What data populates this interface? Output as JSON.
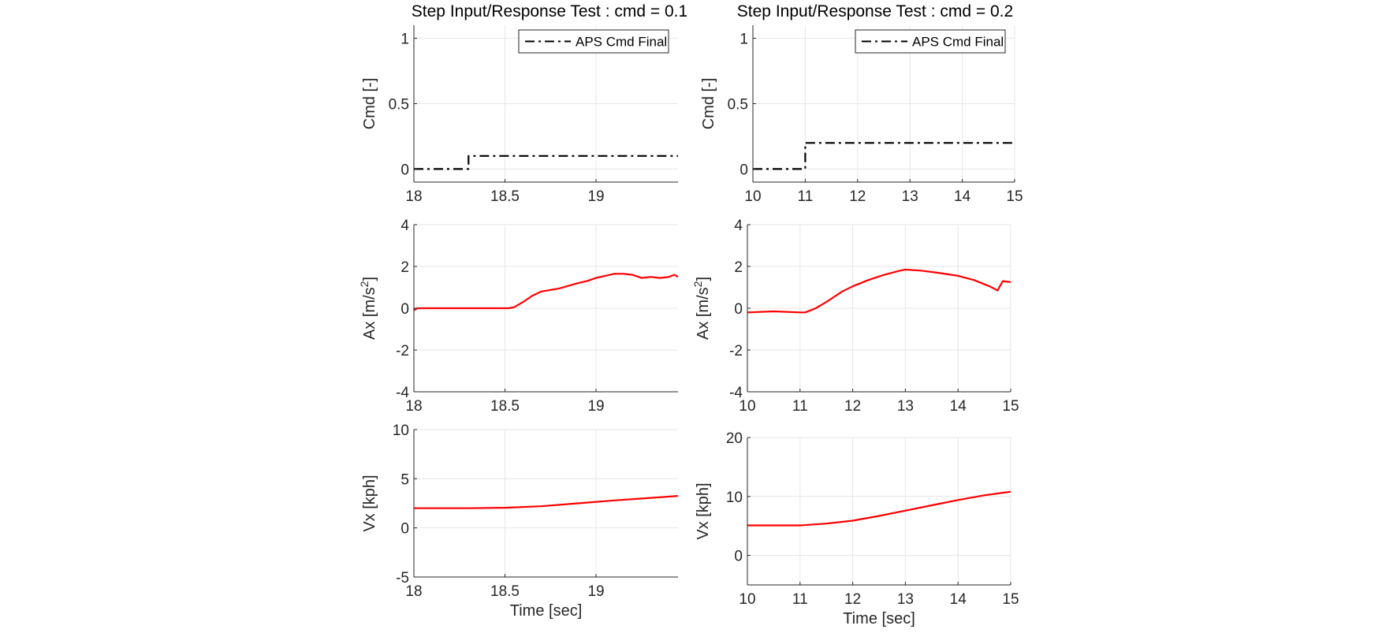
{
  "figure": {
    "columns": [
      {
        "title": "Step Input/Response Test : cmd = 0.1"
      },
      {
        "title": "Step Input/Response Test : cmd = 0.2"
      }
    ]
  },
  "colors": {
    "response": "#ff0000",
    "command": "#000000",
    "grid": "#e6e6e6",
    "axis": "#262626"
  },
  "chart_data": [
    {
      "type": "line",
      "title": "Step Input/Response Test : cmd = 0.1",
      "xlabel": "",
      "ylabel": "Cmd [-]",
      "xlim": [
        18,
        19.45
      ],
      "ylim": [
        -0.1,
        1.1
      ],
      "xticks": [
        18,
        18.5,
        19
      ],
      "yticks": [
        0,
        0.5,
        1
      ],
      "xtick_labels": [
        "18",
        "18.5",
        "19"
      ],
      "ytick_labels": [
        "0",
        "0.5",
        "1"
      ],
      "grid": true,
      "legend": "top-right",
      "series": [
        {
          "name": "APS Cmd Final",
          "style": "dashdot",
          "color": "#000000",
          "x": [
            18,
            18.3,
            18.3,
            19.45
          ],
          "y": [
            0,
            0,
            0.1,
            0.1
          ]
        }
      ]
    },
    {
      "type": "line",
      "title": "Step Input/Response Test : cmd = 0.2",
      "xlabel": "",
      "ylabel": "Cmd [-]",
      "xlim": [
        10,
        15
      ],
      "ylim": [
        -0.1,
        1.1
      ],
      "xticks": [
        10,
        11,
        12,
        13,
        14,
        15
      ],
      "yticks": [
        0,
        0.5,
        1
      ],
      "xtick_labels": [
        "10",
        "11",
        "12",
        "13",
        "14",
        "15"
      ],
      "ytick_labels": [
        "0",
        "0.5",
        "1"
      ],
      "grid": true,
      "legend": "top-right",
      "series": [
        {
          "name": "APS Cmd Final",
          "style": "dashdot",
          "color": "#000000",
          "x": [
            10,
            11,
            11,
            15
          ],
          "y": [
            0,
            0,
            0.2,
            0.2
          ]
        }
      ]
    },
    {
      "type": "line",
      "xlabel": "",
      "ylabel": "Ax [m/s^2]",
      "xlim": [
        18,
        19.45
      ],
      "ylim": [
        -4,
        4
      ],
      "xticks": [
        18,
        18.5,
        19
      ],
      "yticks": [
        -4,
        -2,
        0,
        2,
        4
      ],
      "xtick_labels": [
        "18",
        "18.5",
        "19"
      ],
      "ytick_labels": [
        "-4",
        "-2",
        "0",
        "2",
        "4"
      ],
      "grid": true,
      "series": [
        {
          "style": "solid",
          "color": "#ff0000",
          "x": [
            18,
            18.02,
            18.52,
            18.55,
            18.6,
            18.65,
            18.7,
            18.8,
            18.9,
            18.95,
            19.0,
            19.05,
            19.1,
            19.15,
            19.2,
            19.25,
            19.3,
            19.35,
            19.4,
            19.43,
            19.45
          ],
          "y": [
            -0.1,
            0,
            0,
            0.05,
            0.3,
            0.6,
            0.8,
            0.95,
            1.2,
            1.3,
            1.45,
            1.55,
            1.65,
            1.65,
            1.6,
            1.45,
            1.5,
            1.45,
            1.5,
            1.6,
            1.5
          ]
        }
      ]
    },
    {
      "type": "line",
      "xlabel": "",
      "ylabel": "Ax [m/s^2]",
      "xlim": [
        10,
        15
      ],
      "ylim": [
        -4,
        4
      ],
      "xticks": [
        10,
        11,
        12,
        13,
        14,
        15
      ],
      "yticks": [
        -4,
        -2,
        0,
        2,
        4
      ],
      "xtick_labels": [
        "10",
        "11",
        "12",
        "13",
        "14",
        "15"
      ],
      "ytick_labels": [
        "-4",
        "-2",
        "0",
        "2",
        "4"
      ],
      "grid": true,
      "series": [
        {
          "style": "solid",
          "color": "#ff0000",
          "x": [
            10,
            10.5,
            11,
            11.1,
            11.3,
            11.5,
            11.8,
            12,
            12.3,
            12.6,
            12.9,
            13,
            13.3,
            13.6,
            14,
            14.3,
            14.6,
            14.75,
            14.85,
            15
          ],
          "y": [
            -0.2,
            -0.15,
            -0.2,
            -0.2,
            0,
            0.3,
            0.8,
            1.05,
            1.35,
            1.6,
            1.8,
            1.85,
            1.8,
            1.7,
            1.55,
            1.35,
            1.05,
            0.85,
            1.3,
            1.25
          ]
        }
      ]
    },
    {
      "type": "line",
      "xlabel": "Time [sec]",
      "ylabel": "Vx [kph]",
      "xlim": [
        18,
        19.45
      ],
      "ylim": [
        -5,
        10
      ],
      "xticks": [
        18,
        18.5,
        19
      ],
      "yticks": [
        -5,
        0,
        5,
        10
      ],
      "xtick_labels": [
        "18",
        "18.5",
        "19"
      ],
      "ytick_labels": [
        "-5",
        "0",
        "5",
        "10"
      ],
      "grid": true,
      "series": [
        {
          "style": "solid",
          "color": "#ff0000",
          "x": [
            18,
            18.3,
            18.5,
            18.7,
            18.9,
            19.1,
            19.3,
            19.45
          ],
          "y": [
            2.0,
            2.0,
            2.05,
            2.2,
            2.5,
            2.8,
            3.05,
            3.25
          ]
        }
      ]
    },
    {
      "type": "line",
      "xlabel": "Time [sec]",
      "ylabel": "Vx [kph]",
      "xlim": [
        10,
        15
      ],
      "ylim": [
        -5,
        20
      ],
      "xticks": [
        10,
        11,
        12,
        13,
        14,
        15
      ],
      "yticks": [
        0,
        10,
        20
      ],
      "xtick_labels": [
        "10",
        "11",
        "12",
        "13",
        "14",
        "15"
      ],
      "ytick_labels": [
        "0",
        "10",
        "20"
      ],
      "grid": true,
      "series": [
        {
          "style": "solid",
          "color": "#ff0000",
          "x": [
            10,
            11,
            11.5,
            12,
            12.5,
            13,
            13.5,
            14,
            14.5,
            15
          ],
          "y": [
            5.1,
            5.1,
            5.4,
            5.9,
            6.7,
            7.6,
            8.5,
            9.4,
            10.2,
            10.8
          ]
        }
      ]
    }
  ]
}
